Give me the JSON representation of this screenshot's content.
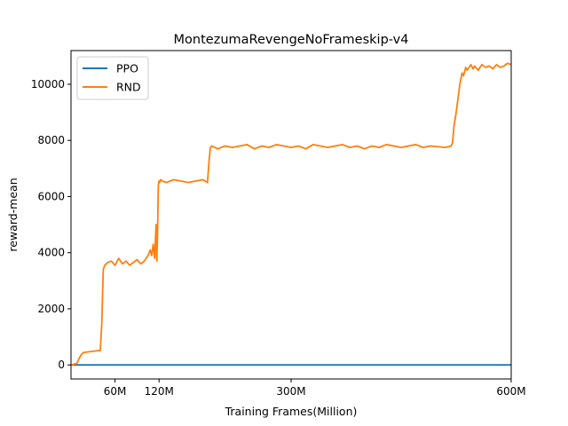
{
  "chart_data": {
    "type": "line",
    "title": "MontezumaRevengeNoFrameskip-v4",
    "xlabel": "Training Frames(Million)",
    "ylabel": "reward-mean",
    "xlim": [
      0,
      600
    ],
    "ylim": [
      -500,
      11200
    ],
    "xticks": [
      {
        "value": 60,
        "label": "60M"
      },
      {
        "value": 120,
        "label": "120M"
      },
      {
        "value": 300,
        "label": "300M"
      },
      {
        "value": 600,
        "label": "600M"
      }
    ],
    "yticks": [
      {
        "value": 0,
        "label": "0"
      },
      {
        "value": 2000,
        "label": "2000"
      },
      {
        "value": 4000,
        "label": "4000"
      },
      {
        "value": 6000,
        "label": "6000"
      },
      {
        "value": 8000,
        "label": "8000"
      },
      {
        "value": 10000,
        "label": "10000"
      }
    ],
    "legend": "top-left",
    "grid": false,
    "series": [
      {
        "name": "PPO",
        "color": "#1f77b4",
        "x": [
          0,
          50,
          100,
          150,
          200,
          250,
          300,
          350,
          400,
          450,
          500,
          550,
          600
        ],
        "y": [
          0,
          0,
          0,
          0,
          0,
          0,
          0,
          0,
          0,
          0,
          0,
          0,
          0
        ]
      },
      {
        "name": "RND",
        "color": "#ff7f0e",
        "x": [
          0,
          8,
          12,
          15,
          18,
          22,
          28,
          34,
          40,
          42,
          43,
          44,
          46,
          50,
          55,
          60,
          65,
          70,
          75,
          80,
          85,
          90,
          95,
          100,
          105,
          108,
          110,
          112,
          114,
          116,
          117,
          118,
          119,
          120,
          121,
          122,
          125,
          130,
          140,
          150,
          160,
          170,
          180,
          186,
          188,
          190,
          192,
          200,
          210,
          220,
          230,
          240,
          250,
          260,
          270,
          280,
          290,
          300,
          310,
          320,
          330,
          340,
          350,
          360,
          370,
          380,
          390,
          400,
          410,
          420,
          430,
          440,
          450,
          460,
          470,
          480,
          490,
          510,
          518,
          520,
          522,
          525,
          528,
          530,
          533,
          535,
          538,
          540,
          545,
          548,
          550,
          555,
          560,
          565,
          570,
          575,
          580,
          585,
          590,
          595,
          600
        ],
        "y": [
          0,
          50,
          280,
          400,
          450,
          460,
          480,
          500,
          520,
          1500,
          2500,
          3400,
          3550,
          3650,
          3700,
          3550,
          3800,
          3600,
          3700,
          3550,
          3650,
          3750,
          3600,
          3700,
          3900,
          4100,
          3900,
          4300,
          3800,
          5000,
          3700,
          4800,
          6400,
          6550,
          6500,
          6600,
          6550,
          6500,
          6600,
          6550,
          6500,
          6550,
          6600,
          6500,
          7200,
          7750,
          7800,
          7700,
          7800,
          7750,
          7800,
          7850,
          7700,
          7800,
          7750,
          7850,
          7800,
          7750,
          7800,
          7700,
          7850,
          7800,
          7750,
          7800,
          7850,
          7750,
          7800,
          7700,
          7800,
          7750,
          7850,
          7800,
          7750,
          7800,
          7850,
          7750,
          7800,
          7750,
          7800,
          7900,
          8500,
          9000,
          9600,
          10000,
          10400,
          10300,
          10600,
          10500,
          10700,
          10550,
          10650,
          10500,
          10700,
          10600,
          10650,
          10550,
          10700,
          10600,
          10650,
          10750,
          10700
        ]
      }
    ]
  }
}
